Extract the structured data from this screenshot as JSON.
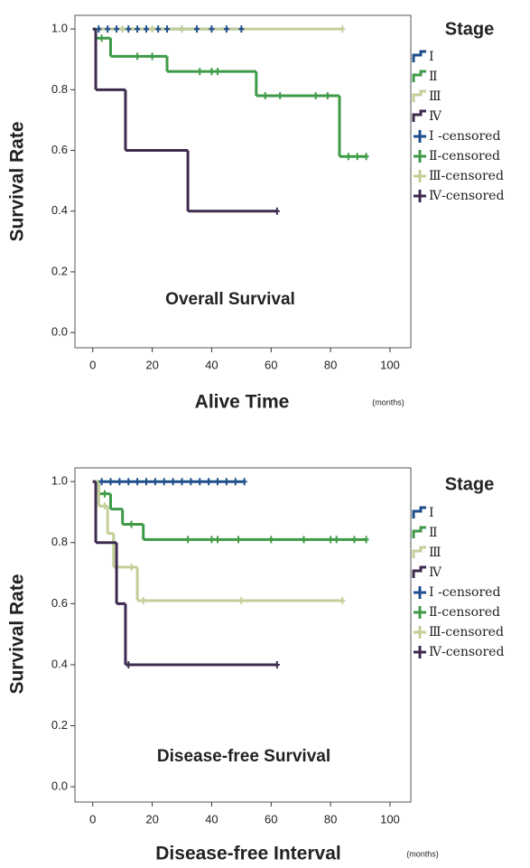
{
  "chart_data": [
    {
      "type": "line",
      "title": "Overall Survival",
      "x_label": "Alive Time",
      "x_unit": "(months)",
      "y_label": "Survival Rate",
      "legend_title": "Stage",
      "xlim": [
        -6,
        107
      ],
      "ylim": [
        -0.05,
        1.045
      ],
      "xticks": [
        0,
        20,
        40,
        60,
        80,
        100
      ],
      "yticks": [
        {
          "value": 0,
          "label": "0.0"
        },
        0.2,
        0.4,
        0.6,
        0.8,
        {
          "value": 1,
          "label": "1.0"
        }
      ],
      "series": [
        {
          "name": "Ⅰ",
          "color": "#1f4e8c",
          "style": "step",
          "x": [
            0,
            50
          ],
          "values": [
            1,
            1
          ]
        },
        {
          "name": "Ⅱ",
          "color": "#3f9a47",
          "style": "step",
          "x": [
            0,
            1,
            6,
            25,
            55,
            83,
            92
          ],
          "values": [
            1,
            0.97,
            0.91,
            0.86,
            0.78,
            0.58,
            0.58
          ]
        },
        {
          "name": "Ⅲ",
          "color": "#c3cf98",
          "style": "step",
          "x": [
            0,
            84
          ],
          "values": [
            1,
            1
          ]
        },
        {
          "name": "Ⅳ",
          "color": "#3d2a4e",
          "style": "step",
          "x": [
            0,
            1,
            11,
            32,
            62
          ],
          "values": [
            1,
            0.8,
            0.6,
            0.4,
            0.4
          ]
        },
        {
          "name": "Ⅰ -censored",
          "color": "#1f4e8c",
          "style": "censor",
          "x": [
            2,
            5,
            8,
            12,
            15,
            18,
            22,
            25,
            30,
            35,
            40,
            45,
            50
          ],
          "values": [
            1,
            1,
            1,
            1,
            1,
            1,
            1,
            1,
            1,
            1,
            1,
            1,
            1
          ]
        },
        {
          "name": "Ⅱ-censored",
          "color": "#3f9a47",
          "style": "censor",
          "x": [
            3,
            15,
            20,
            36,
            40,
            42,
            58,
            63,
            75,
            79,
            86,
            89,
            92
          ],
          "values": [
            0.97,
            0.91,
            0.91,
            0.86,
            0.86,
            0.86,
            0.78,
            0.78,
            0.78,
            0.78,
            0.58,
            0.58,
            0.58
          ]
        },
        {
          "name": "Ⅲ-censored",
          "color": "#c3cf98",
          "style": "censor",
          "x": [
            10,
            20,
            30,
            84
          ],
          "values": [
            1,
            1,
            1,
            1
          ]
        },
        {
          "name": "Ⅳ-censored",
          "color": "#3d2a4e",
          "style": "censor",
          "x": [
            62
          ],
          "values": [
            0.4
          ]
        }
      ]
    },
    {
      "type": "line",
      "title": "Disease-free Survival",
      "x_label": "Disease-free Interval",
      "x_unit": "(months)",
      "y_label": "Survival Rate",
      "legend_title": "Stage",
      "xlim": [
        -6,
        107
      ],
      "ylim": [
        -0.05,
        1.045
      ],
      "xticks": [
        0,
        20,
        40,
        60,
        80,
        100
      ],
      "yticks": [
        {
          "value": 0,
          "label": "0.0"
        },
        0.2,
        0.4,
        0.6,
        0.8,
        {
          "value": 1,
          "label": "1.0"
        }
      ],
      "series": [
        {
          "name": "Ⅰ",
          "color": "#1f4e8c",
          "style": "step",
          "x": [
            0,
            51
          ],
          "values": [
            1,
            1
          ]
        },
        {
          "name": "Ⅱ",
          "color": "#3f9a47",
          "style": "step",
          "x": [
            0,
            2,
            6,
            10,
            17,
            92
          ],
          "values": [
            1,
            0.96,
            0.91,
            0.86,
            0.81,
            0.81
          ]
        },
        {
          "name": "Ⅲ",
          "color": "#c3cf98",
          "style": "step",
          "x": [
            0,
            2,
            5,
            7,
            15,
            84
          ],
          "values": [
            1,
            0.92,
            0.83,
            0.72,
            0.61,
            0.61
          ]
        },
        {
          "name": "Ⅳ",
          "color": "#3d2a4e",
          "style": "step",
          "x": [
            0,
            1,
            8,
            11,
            62
          ],
          "values": [
            1,
            0.8,
            0.6,
            0.4,
            0.4
          ]
        },
        {
          "name": "Ⅰ -censored",
          "color": "#1f4e8c",
          "style": "censor",
          "x": [
            3,
            6,
            9,
            12,
            15,
            18,
            21,
            24,
            27,
            30,
            33,
            36,
            39,
            42,
            45,
            48,
            51
          ],
          "values": [
            1,
            1,
            1,
            1,
            1,
            1,
            1,
            1,
            1,
            1,
            1,
            1,
            1,
            1,
            1,
            1,
            1
          ]
        },
        {
          "name": "Ⅱ-censored",
          "color": "#3f9a47",
          "style": "censor",
          "x": [
            4,
            13,
            32,
            40,
            42,
            49,
            60,
            71,
            80,
            82,
            88,
            92
          ],
          "values": [
            0.96,
            0.86,
            0.81,
            0.81,
            0.81,
            0.81,
            0.81,
            0.81,
            0.81,
            0.81,
            0.81,
            0.81
          ]
        },
        {
          "name": "Ⅲ-censored",
          "color": "#c3cf98",
          "style": "censor",
          "x": [
            4,
            13,
            17,
            50,
            84
          ],
          "values": [
            0.92,
            0.72,
            0.61,
            0.61,
            0.61
          ]
        },
        {
          "name": "Ⅳ-censored",
          "color": "#3d2a4e",
          "style": "censor",
          "x": [
            12,
            62
          ],
          "values": [
            0.4,
            0.4
          ]
        }
      ]
    }
  ]
}
